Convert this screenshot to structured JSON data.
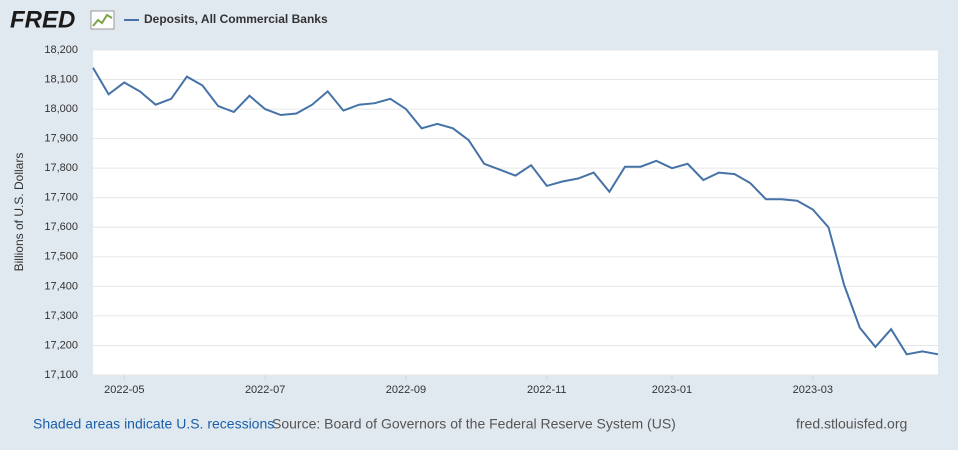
{
  "chart_data": {
    "type": "line",
    "logo": "FRED",
    "ylabel": "Billions of U.S. Dollars",
    "footer_left": "Shaded areas indicate U.S. recessions",
    "source": "Source: Board of Governors of the Federal Reserve System (US)",
    "site": "fred.stlouisfed.org",
    "categories": [
      null,
      null,
      "2022-05",
      null,
      null,
      null,
      null,
      null,
      null,
      null,
      null,
      "2022-07",
      null,
      null,
      null,
      null,
      null,
      null,
      null,
      null,
      "2022-09",
      null,
      null,
      null,
      null,
      null,
      null,
      null,
      null,
      "2022-11",
      null,
      null,
      null,
      null,
      null,
      null,
      null,
      "2023-01",
      null,
      null,
      null,
      null,
      null,
      null,
      null,
      null,
      "2023-03",
      null,
      null,
      null,
      null,
      null,
      null,
      null,
      null
    ],
    "series": [
      {
        "name": "Deposits, All Commercial Banks",
        "color": "#4572a7",
        "values": [
          18140,
          18050,
          18090,
          18060,
          18015,
          18035,
          18110,
          18080,
          18010,
          17990,
          18045,
          18000,
          17980,
          17985,
          18015,
          18060,
          17995,
          18015,
          18020,
          18035,
          18000,
          17935,
          17950,
          17935,
          17895,
          17815,
          17795,
          17775,
          17810,
          17740,
          17755,
          17765,
          17785,
          17720,
          17805,
          17805,
          17825,
          17800,
          17815,
          17760,
          17785,
          17780,
          17750,
          17695,
          17695,
          17690,
          17660,
          17600,
          17405,
          17260,
          17195,
          17255,
          17170,
          17180,
          17170
        ]
      }
    ],
    "ylim": [
      17100,
      18200
    ],
    "yticks": [
      {
        "value": 17100,
        "label": "17,100"
      },
      {
        "value": 17200,
        "label": "17,200"
      },
      {
        "value": 17300,
        "label": "17,300"
      },
      {
        "value": 17400,
        "label": "17,400"
      },
      {
        "value": 17500,
        "label": "17,500"
      },
      {
        "value": 17600,
        "label": "17,600"
      },
      {
        "value": 17700,
        "label": "17,700"
      },
      {
        "value": 17800,
        "label": "17,800"
      },
      {
        "value": 17900,
        "label": "17,900"
      },
      {
        "value": 18000,
        "label": "18,000"
      },
      {
        "value": 18100,
        "label": "18,100"
      },
      {
        "value": 18200,
        "label": "18,200"
      }
    ],
    "grid": true
  }
}
